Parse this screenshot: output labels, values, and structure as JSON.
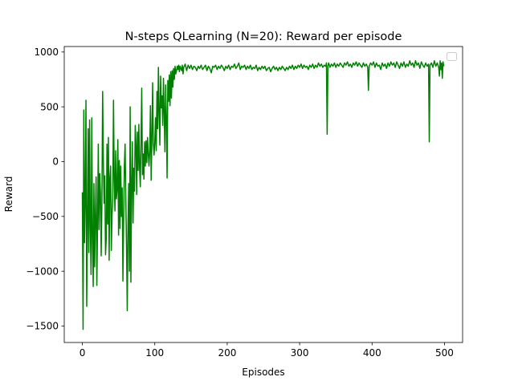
{
  "chart_data": {
    "type": "line",
    "title": "N-steps QLearning (N=20): Reward per episode",
    "xlabel": "Episodes",
    "ylabel": "Reward",
    "xlim": [
      -25,
      525
    ],
    "ylim": [
      -1650,
      1050
    ],
    "xticks": [
      0,
      100,
      200,
      300,
      400,
      500
    ],
    "yticks": [
      -1500,
      -1000,
      -500,
      0,
      500,
      1000
    ],
    "xtick_labels": [
      "0",
      "100",
      "200",
      "300",
      "400",
      "500"
    ],
    "ytick_labels": [
      "−1500",
      "−1000",
      "−500",
      "0",
      "500",
      "1000"
    ],
    "grid": false,
    "legend": {
      "position": "top-right",
      "entries": []
    },
    "series": [
      {
        "color": "#008000",
        "points": [
          [
            0,
            -280
          ],
          [
            1,
            -1530
          ],
          [
            2,
            470
          ],
          [
            3,
            -740
          ],
          [
            4,
            -350
          ],
          [
            5,
            560
          ],
          [
            6,
            -1320
          ],
          [
            7,
            -620
          ],
          [
            8,
            300
          ],
          [
            9,
            -830
          ],
          [
            10,
            380
          ],
          [
            11,
            -600
          ],
          [
            12,
            -1030
          ],
          [
            13,
            400
          ],
          [
            14,
            -700
          ],
          [
            15,
            -1140
          ],
          [
            16,
            -200
          ],
          [
            17,
            -960
          ],
          [
            18,
            -510
          ],
          [
            19,
            -140
          ],
          [
            20,
            -1130
          ],
          [
            21,
            -570
          ],
          [
            22,
            160
          ],
          [
            23,
            -620
          ],
          [
            24,
            -110
          ],
          [
            25,
            -290
          ],
          [
            26,
            -860
          ],
          [
            27,
            -380
          ],
          [
            28,
            640
          ],
          [
            29,
            0
          ],
          [
            30,
            -380
          ],
          [
            31,
            -130
          ],
          [
            32,
            -850
          ],
          [
            33,
            -700
          ],
          [
            34,
            160
          ],
          [
            35,
            -570
          ],
          [
            36,
            220
          ],
          [
            37,
            -900
          ],
          [
            38,
            -150
          ],
          [
            39,
            -40
          ],
          [
            40,
            -810
          ],
          [
            41,
            -480
          ],
          [
            42,
            -330
          ],
          [
            43,
            560
          ],
          [
            44,
            -160
          ],
          [
            45,
            -450
          ],
          [
            46,
            100
          ],
          [
            47,
            -340
          ],
          [
            48,
            -250
          ],
          [
            49,
            200
          ],
          [
            50,
            -670
          ],
          [
            51,
            10
          ],
          [
            52,
            -610
          ],
          [
            53,
            -40
          ],
          [
            54,
            -500
          ],
          [
            55,
            -240
          ],
          [
            56,
            -1090
          ],
          [
            57,
            -510
          ],
          [
            58,
            -40
          ],
          [
            59,
            160
          ],
          [
            60,
            -330
          ],
          [
            61,
            -770
          ],
          [
            62,
            -1360
          ],
          [
            63,
            -580
          ],
          [
            64,
            -200
          ],
          [
            65,
            -1000
          ],
          [
            66,
            500
          ],
          [
            67,
            -1100
          ],
          [
            68,
            -200
          ],
          [
            69,
            180
          ],
          [
            70,
            -560
          ],
          [
            71,
            -60
          ],
          [
            72,
            -270
          ],
          [
            73,
            330
          ],
          [
            74,
            160
          ],
          [
            75,
            -300
          ],
          [
            76,
            270
          ],
          [
            77,
            -80
          ],
          [
            78,
            340
          ],
          [
            79,
            -60
          ],
          [
            80,
            -230
          ],
          [
            81,
            190
          ],
          [
            82,
            670
          ],
          [
            83,
            -120
          ],
          [
            84,
            70
          ],
          [
            85,
            -160
          ],
          [
            86,
            180
          ],
          [
            87,
            -40
          ],
          [
            88,
            190
          ],
          [
            89,
            -10
          ],
          [
            90,
            220
          ],
          [
            91,
            80
          ],
          [
            92,
            -40
          ],
          [
            93,
            90
          ],
          [
            94,
            510
          ],
          [
            95,
            -170
          ],
          [
            96,
            200
          ],
          [
            97,
            720
          ],
          [
            98,
            170
          ],
          [
            99,
            60
          ],
          [
            100,
            170
          ],
          [
            101,
            400
          ],
          [
            102,
            100
          ],
          [
            103,
            640
          ],
          [
            104,
            300
          ],
          [
            105,
            860
          ],
          [
            106,
            450
          ],
          [
            107,
            150
          ],
          [
            108,
            780
          ],
          [
            109,
            490
          ],
          [
            110,
            600
          ],
          [
            111,
            330
          ],
          [
            112,
            760
          ],
          [
            113,
            450
          ],
          [
            114,
            90
          ],
          [
            115,
            700
          ],
          [
            116,
            400
          ],
          [
            117,
            -150
          ],
          [
            118,
            740
          ],
          [
            119,
            550
          ],
          [
            120,
            790
          ],
          [
            121,
            510
          ],
          [
            122,
            820
          ],
          [
            123,
            580
          ],
          [
            124,
            830
          ],
          [
            125,
            680
          ],
          [
            126,
            850
          ],
          [
            127,
            750
          ],
          [
            128,
            870
          ],
          [
            129,
            800
          ],
          [
            130,
            830
          ],
          [
            131,
            870
          ],
          [
            132,
            840
          ],
          [
            133,
            880
          ],
          [
            134,
            820
          ],
          [
            135,
            870
          ],
          [
            136,
            850
          ],
          [
            137,
            830
          ],
          [
            138,
            880
          ],
          [
            139,
            800
          ],
          [
            140,
            860
          ],
          [
            142,
            890
          ],
          [
            144,
            830
          ],
          [
            146,
            880
          ],
          [
            148,
            850
          ],
          [
            150,
            880
          ],
          [
            152,
            840
          ],
          [
            154,
            870
          ],
          [
            156,
            860
          ],
          [
            158,
            830
          ],
          [
            160,
            870
          ],
          [
            162,
            850
          ],
          [
            164,
            880
          ],
          [
            166,
            840
          ],
          [
            168,
            860
          ],
          [
            170,
            880
          ],
          [
            172,
            830
          ],
          [
            174,
            870
          ],
          [
            176,
            850
          ],
          [
            178,
            810
          ],
          [
            180,
            870
          ],
          [
            182,
            860
          ],
          [
            184,
            880
          ],
          [
            186,
            840
          ],
          [
            188,
            870
          ],
          [
            190,
            850
          ],
          [
            192,
            880
          ],
          [
            194,
            860
          ],
          [
            196,
            830
          ],
          [
            198,
            870
          ],
          [
            200,
            850
          ],
          [
            202,
            880
          ],
          [
            204,
            840
          ],
          [
            206,
            870
          ],
          [
            208,
            860
          ],
          [
            210,
            890
          ],
          [
            212,
            850
          ],
          [
            214,
            870
          ],
          [
            216,
            900
          ],
          [
            218,
            840
          ],
          [
            220,
            870
          ],
          [
            222,
            860
          ],
          [
            224,
            880
          ],
          [
            226,
            840
          ],
          [
            228,
            870
          ],
          [
            230,
            850
          ],
          [
            232,
            880
          ],
          [
            234,
            840
          ],
          [
            236,
            860
          ],
          [
            238,
            850
          ],
          [
            240,
            880
          ],
          [
            242,
            830
          ],
          [
            244,
            860
          ],
          [
            246,
            840
          ],
          [
            248,
            870
          ],
          [
            250,
            850
          ],
          [
            252,
            870
          ],
          [
            254,
            830
          ],
          [
            256,
            850
          ],
          [
            258,
            860
          ],
          [
            260,
            820
          ],
          [
            262,
            850
          ],
          [
            264,
            870
          ],
          [
            266,
            840
          ],
          [
            268,
            860
          ],
          [
            270,
            830
          ],
          [
            272,
            860
          ],
          [
            274,
            840
          ],
          [
            276,
            870
          ],
          [
            278,
            850
          ],
          [
            280,
            830
          ],
          [
            282,
            860
          ],
          [
            284,
            840
          ],
          [
            286,
            870
          ],
          [
            288,
            850
          ],
          [
            290,
            880
          ],
          [
            292,
            840
          ],
          [
            294,
            870
          ],
          [
            296,
            850
          ],
          [
            298,
            880
          ],
          [
            300,
            860
          ],
          [
            302,
            890
          ],
          [
            304,
            850
          ],
          [
            306,
            880
          ],
          [
            308,
            860
          ],
          [
            310,
            870
          ],
          [
            312,
            840
          ],
          [
            314,
            880
          ],
          [
            316,
            860
          ],
          [
            318,
            890
          ],
          [
            320,
            850
          ],
          [
            322,
            880
          ],
          [
            324,
            860
          ],
          [
            326,
            900
          ],
          [
            328,
            870
          ],
          [
            330,
            890
          ],
          [
            332,
            860
          ],
          [
            334,
            880
          ],
          [
            336,
            870
          ],
          [
            337,
            900
          ],
          [
            338,
            250
          ],
          [
            339,
            870
          ],
          [
            340,
            900
          ],
          [
            342,
            860
          ],
          [
            344,
            890
          ],
          [
            346,
            870
          ],
          [
            348,
            900
          ],
          [
            350,
            860
          ],
          [
            352,
            890
          ],
          [
            354,
            870
          ],
          [
            356,
            900
          ],
          [
            358,
            880
          ],
          [
            360,
            860
          ],
          [
            362,
            900
          ],
          [
            364,
            880
          ],
          [
            366,
            910
          ],
          [
            368,
            870
          ],
          [
            370,
            890
          ],
          [
            372,
            860
          ],
          [
            374,
            900
          ],
          [
            376,
            880
          ],
          [
            378,
            910
          ],
          [
            380,
            870
          ],
          [
            382,
            900
          ],
          [
            384,
            880
          ],
          [
            386,
            860
          ],
          [
            388,
            900
          ],
          [
            390,
            870
          ],
          [
            392,
            890
          ],
          [
            394,
            860
          ],
          [
            395,
            650
          ],
          [
            396,
            870
          ],
          [
            398,
            900
          ],
          [
            400,
            880
          ],
          [
            402,
            910
          ],
          [
            404,
            860
          ],
          [
            406,
            900
          ],
          [
            408,
            870
          ],
          [
            410,
            880
          ],
          [
            412,
            840
          ],
          [
            414,
            900
          ],
          [
            416,
            870
          ],
          [
            418,
            890
          ],
          [
            420,
            850
          ],
          [
            422,
            900
          ],
          [
            424,
            870
          ],
          [
            426,
            910
          ],
          [
            428,
            880
          ],
          [
            430,
            900
          ],
          [
            432,
            860
          ],
          [
            434,
            910
          ],
          [
            436,
            880
          ],
          [
            438,
            850
          ],
          [
            440,
            900
          ],
          [
            442,
            870
          ],
          [
            444,
            910
          ],
          [
            446,
            860
          ],
          [
            448,
            890
          ],
          [
            450,
            870
          ],
          [
            452,
            920
          ],
          [
            454,
            880
          ],
          [
            456,
            900
          ],
          [
            458,
            860
          ],
          [
            460,
            920
          ],
          [
            462,
            880
          ],
          [
            464,
            900
          ],
          [
            466,
            850
          ],
          [
            468,
            910
          ],
          [
            470,
            880
          ],
          [
            472,
            860
          ],
          [
            474,
            900
          ],
          [
            476,
            870
          ],
          [
            478,
            890
          ],
          [
            479,
            180
          ],
          [
            480,
            880
          ],
          [
            482,
            900
          ],
          [
            484,
            860
          ],
          [
            486,
            920
          ],
          [
            488,
            870
          ],
          [
            490,
            900
          ],
          [
            492,
            860
          ],
          [
            493,
            780
          ],
          [
            494,
            920
          ],
          [
            495,
            840
          ],
          [
            496,
            900
          ],
          [
            497,
            760
          ],
          [
            498,
            910
          ],
          [
            499,
            870
          ]
        ]
      }
    ]
  }
}
